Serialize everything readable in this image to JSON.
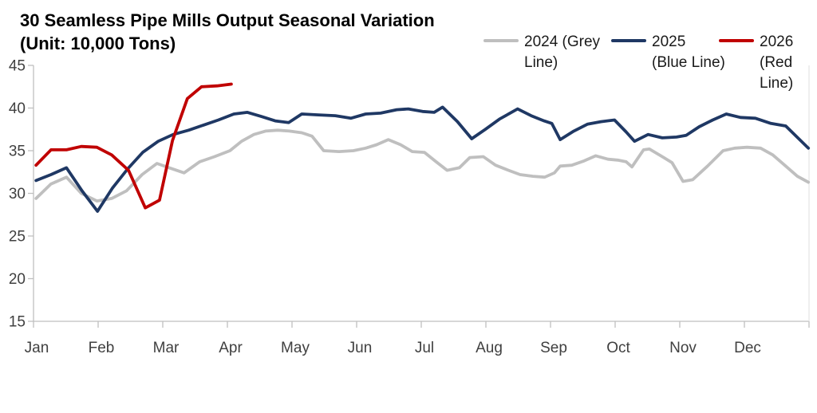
{
  "title": {
    "line1": "30 Seamless Pipe Mills Output Seasonal Variation",
    "line2": "(Unit: 10,000 Tons)"
  },
  "legend": {
    "position": "top-right",
    "entries": [
      {
        "series": "2024",
        "full_label": "2024 (Grey Line)",
        "lines": [
          "2024 (Grey",
          "Line)"
        ],
        "color": "#BFBFBF"
      },
      {
        "series": "2025",
        "full_label": "2025 (Blue Line)",
        "lines": [
          "2025",
          "(Blue Line)"
        ],
        "color": "#1F3864"
      },
      {
        "series": "2026",
        "full_label": "2026 (Red Line)",
        "lines": [
          "2026",
          "(Red",
          "Line)"
        ],
        "color": "#C00000"
      }
    ]
  },
  "chart_data": {
    "type": "line",
    "title": "30 Seamless Pipe Mills Output Seasonal Variation",
    "unit": "10,000 Tons",
    "grid": false,
    "legend_position": "top-right",
    "x_axis": {
      "labels": [
        "Jan",
        "Feb",
        "Mar",
        "Apr",
        "May",
        "Jun",
        "Jul",
        "Aug",
        "Sep",
        "Oct",
        "Nov",
        "Dec"
      ],
      "x_unit": "month_fraction_0_based",
      "range": [
        0,
        12
      ]
    },
    "y_axis": {
      "min": 15,
      "max": 45,
      "step": 5,
      "ticks": [
        45,
        40,
        35,
        30,
        25,
        20,
        15
      ]
    },
    "style": {
      "axis_color": "#BFBFBF",
      "right_border_color": "#E4E4E4",
      "tick_label_color": "#404040",
      "line_width": 3.8
    },
    "series": [
      {
        "id": "2024-grey",
        "name": "2024 (Grey Line)",
        "color": "#BFBFBF",
        "points": [
          [
            0.04,
            29.4
          ],
          [
            0.27,
            31.1
          ],
          [
            0.51,
            31.9
          ],
          [
            0.74,
            30.0
          ],
          [
            0.98,
            29.1
          ],
          [
            1.21,
            29.4
          ],
          [
            1.44,
            30.3
          ],
          [
            1.68,
            32.2
          ],
          [
            1.91,
            33.5
          ],
          [
            2.1,
            33.0
          ],
          [
            2.33,
            32.4
          ],
          [
            2.57,
            33.7
          ],
          [
            2.8,
            34.3
          ],
          [
            3.04,
            35.0
          ],
          [
            3.22,
            36.1
          ],
          [
            3.41,
            36.9
          ],
          [
            3.59,
            37.3
          ],
          [
            3.78,
            37.4
          ],
          [
            3.96,
            37.3
          ],
          [
            4.15,
            37.1
          ],
          [
            4.31,
            36.7
          ],
          [
            4.49,
            35.0
          ],
          [
            4.73,
            34.9
          ],
          [
            4.95,
            35.0
          ],
          [
            5.14,
            35.3
          ],
          [
            5.31,
            35.7
          ],
          [
            5.49,
            36.3
          ],
          [
            5.68,
            35.7
          ],
          [
            5.86,
            34.9
          ],
          [
            6.05,
            34.8
          ],
          [
            6.23,
            33.7
          ],
          [
            6.4,
            32.7
          ],
          [
            6.59,
            33.0
          ],
          [
            6.75,
            34.2
          ],
          [
            6.96,
            34.3
          ],
          [
            7.15,
            33.3
          ],
          [
            7.35,
            32.7
          ],
          [
            7.53,
            32.2
          ],
          [
            7.73,
            32.0
          ],
          [
            7.91,
            31.9
          ],
          [
            8.06,
            32.4
          ],
          [
            8.15,
            33.2
          ],
          [
            8.33,
            33.3
          ],
          [
            8.52,
            33.8
          ],
          [
            8.7,
            34.4
          ],
          [
            8.89,
            34.0
          ],
          [
            9.04,
            33.9
          ],
          [
            9.17,
            33.7
          ],
          [
            9.26,
            33.1
          ],
          [
            9.44,
            35.1
          ],
          [
            9.53,
            35.2
          ],
          [
            9.73,
            34.3
          ],
          [
            9.88,
            33.6
          ],
          [
            10.05,
            31.4
          ],
          [
            10.2,
            31.6
          ],
          [
            10.43,
            33.2
          ],
          [
            10.67,
            35.0
          ],
          [
            10.85,
            35.3
          ],
          [
            11.04,
            35.4
          ],
          [
            11.25,
            35.3
          ],
          [
            11.44,
            34.5
          ],
          [
            11.64,
            33.2
          ],
          [
            11.82,
            32.0
          ],
          [
            11.99,
            31.3
          ]
        ]
      },
      {
        "id": "2025-blue",
        "name": "2025 (Blue Line)",
        "color": "#1F3864",
        "points": [
          [
            0.04,
            31.5
          ],
          [
            0.27,
            32.2
          ],
          [
            0.51,
            33.0
          ],
          [
            0.75,
            30.3
          ],
          [
            0.99,
            27.9
          ],
          [
            1.22,
            30.6
          ],
          [
            1.46,
            32.9
          ],
          [
            1.69,
            34.8
          ],
          [
            1.93,
            36.1
          ],
          [
            2.16,
            36.9
          ],
          [
            2.4,
            37.4
          ],
          [
            2.63,
            38.0
          ],
          [
            2.86,
            38.6
          ],
          [
            3.1,
            39.3
          ],
          [
            3.31,
            39.5
          ],
          [
            3.53,
            39.0
          ],
          [
            3.74,
            38.5
          ],
          [
            3.95,
            38.3
          ],
          [
            4.15,
            39.3
          ],
          [
            4.41,
            39.2
          ],
          [
            4.67,
            39.1
          ],
          [
            4.91,
            38.8
          ],
          [
            5.14,
            39.3
          ],
          [
            5.37,
            39.4
          ],
          [
            5.62,
            39.8
          ],
          [
            5.8,
            39.9
          ],
          [
            6.02,
            39.6
          ],
          [
            6.2,
            39.5
          ],
          [
            6.33,
            40.1
          ],
          [
            6.56,
            38.4
          ],
          [
            6.78,
            36.4
          ],
          [
            6.99,
            37.5
          ],
          [
            7.21,
            38.7
          ],
          [
            7.49,
            39.9
          ],
          [
            7.7,
            39.1
          ],
          [
            7.9,
            38.5
          ],
          [
            8.02,
            38.2
          ],
          [
            8.15,
            36.3
          ],
          [
            8.36,
            37.3
          ],
          [
            8.57,
            38.1
          ],
          [
            8.78,
            38.4
          ],
          [
            8.99,
            38.6
          ],
          [
            9.17,
            37.2
          ],
          [
            9.3,
            36.1
          ],
          [
            9.51,
            36.9
          ],
          [
            9.73,
            36.5
          ],
          [
            9.95,
            36.6
          ],
          [
            10.1,
            36.8
          ],
          [
            10.3,
            37.8
          ],
          [
            10.51,
            38.6
          ],
          [
            10.72,
            39.3
          ],
          [
            10.94,
            38.9
          ],
          [
            11.17,
            38.8
          ],
          [
            11.41,
            38.2
          ],
          [
            11.64,
            37.9
          ],
          [
            11.99,
            35.3
          ]
        ]
      },
      {
        "id": "2026-red",
        "name": "2026 (Red Line)",
        "color": "#C00000",
        "points": [
          [
            0.04,
            33.3
          ],
          [
            0.27,
            35.1
          ],
          [
            0.51,
            35.1
          ],
          [
            0.74,
            35.5
          ],
          [
            0.98,
            35.4
          ],
          [
            1.21,
            34.5
          ],
          [
            1.47,
            32.7
          ],
          [
            1.73,
            28.3
          ],
          [
            1.95,
            29.2
          ],
          [
            2.15,
            36.2
          ],
          [
            2.38,
            41.1
          ],
          [
            2.6,
            42.5
          ],
          [
            2.84,
            42.6
          ],
          [
            3.06,
            42.8
          ]
        ]
      }
    ]
  }
}
